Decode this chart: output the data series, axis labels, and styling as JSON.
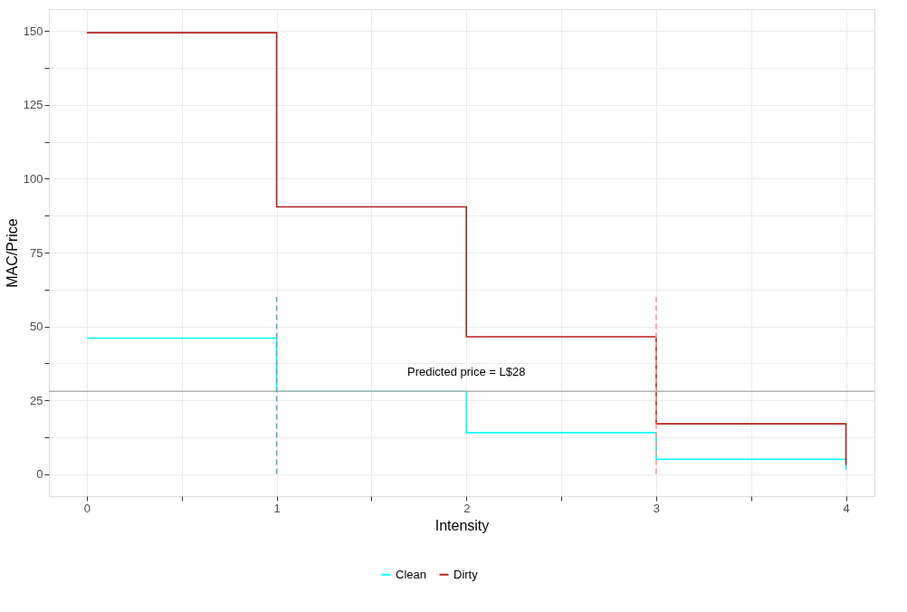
{
  "chart_data": {
    "type": "step",
    "xlabel": "Intensity",
    "ylabel": "MAC/Price",
    "xlim": [
      -0.2,
      4.15
    ],
    "ylim": [
      -7.5,
      157.5
    ],
    "xticks": [
      0,
      {
        "value": 0.5,
        "label": null
      },
      1,
      {
        "value": 1.5,
        "label": null
      },
      2,
      {
        "value": 2.5,
        "label": null
      },
      3,
      {
        "value": 3.5,
        "label": null
      },
      4
    ],
    "yticks": [
      0,
      {
        "value": 12.5,
        "label": null
      },
      25,
      {
        "value": 37.5,
        "label": null
      },
      50,
      {
        "value": 62.5,
        "label": null
      },
      75,
      {
        "value": 87.5,
        "label": null
      },
      100,
      {
        "value": 112.5,
        "label": null
      },
      125,
      {
        "value": 137.5,
        "label": null
      },
      150
    ],
    "grid": true,
    "legend": "bottom",
    "series": [
      {
        "name": "Clean",
        "color": "#00ffff",
        "x": [
          0,
          1,
          2,
          3,
          4,
          4
        ],
        "values": [
          46,
          28,
          14,
          5,
          5,
          1.5
        ]
      },
      {
        "name": "Dirty",
        "color": "#b22222",
        "x": [
          0,
          1,
          2,
          3,
          4,
          4
        ],
        "values": [
          149.5,
          90.5,
          46.5,
          17,
          17,
          3
        ]
      },
      {
        "type": "line",
        "line_style": "dashed",
        "color": "#6aaab8",
        "x": [
          1,
          1
        ],
        "values": [
          0,
          60
        ]
      },
      {
        "type": "line",
        "line_style": "dashed",
        "color": "#f49a9a",
        "x": [
          3,
          3
        ],
        "values": [
          0,
          60
        ]
      }
    ],
    "ref_lines": [
      {
        "axis": "y",
        "value": 28,
        "color": "#b3b3b3"
      }
    ],
    "annotations": [
      {
        "text": "Predicted price = L$28",
        "x": 2,
        "y": 28
      }
    ]
  }
}
